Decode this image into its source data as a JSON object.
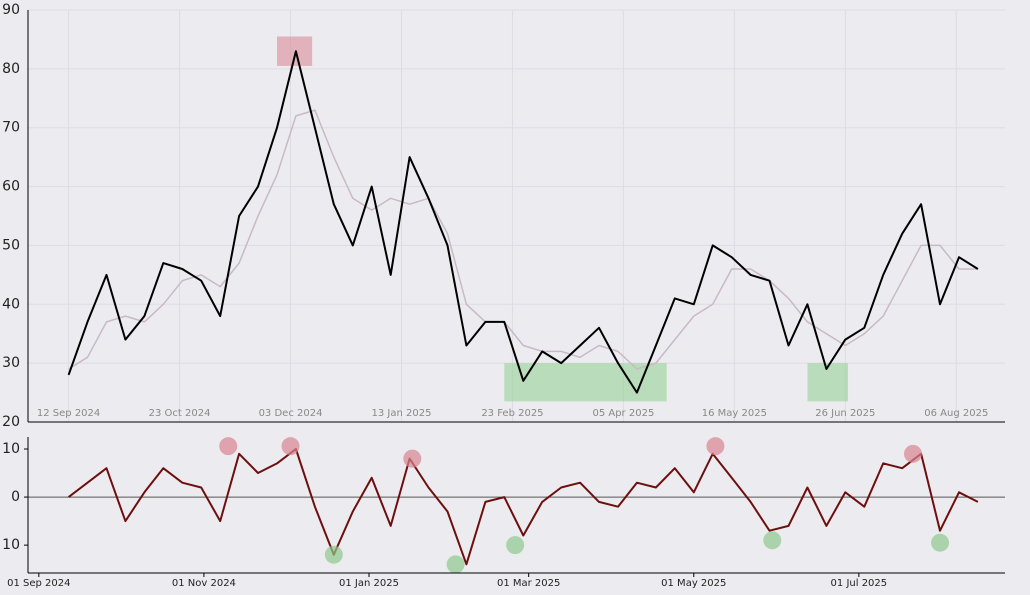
{
  "chart_data": [
    {
      "type": "line",
      "x": [
        "2024-09-12",
        "2024-09-19",
        "2024-09-26",
        "2024-10-03",
        "2024-10-10",
        "2024-10-17",
        "2024-10-24",
        "2024-10-31",
        "2024-11-07",
        "2024-11-14",
        "2024-11-21",
        "2024-11-28",
        "2024-12-05",
        "2024-12-12",
        "2024-12-19",
        "2024-12-26",
        "2025-01-02",
        "2025-01-09",
        "2025-01-16",
        "2025-01-23",
        "2025-01-30",
        "2025-02-06",
        "2025-02-13",
        "2025-02-20",
        "2025-02-27",
        "2025-03-06",
        "2025-03-13",
        "2025-03-20",
        "2025-03-27",
        "2025-04-03",
        "2025-04-10",
        "2025-04-17",
        "2025-04-24",
        "2025-05-01",
        "2025-05-08",
        "2025-05-15",
        "2025-05-22",
        "2025-05-29",
        "2025-06-05",
        "2025-06-12",
        "2025-06-19",
        "2025-06-26",
        "2025-07-03",
        "2025-07-10",
        "2025-07-17",
        "2025-07-24",
        "2025-07-31",
        "2025-08-07",
        "2025-08-14"
      ],
      "series": [
        {
          "color": "#000000",
          "values": [
            28,
            37,
            45,
            34,
            38,
            47,
            46,
            44,
            38,
            55,
            60,
            70,
            83,
            70,
            57,
            50,
            60,
            45,
            65,
            58,
            50,
            33,
            37,
            37,
            27,
            32,
            30,
            33,
            36,
            30,
            25,
            33,
            41,
            40,
            50,
            48,
            45,
            44,
            33,
            40,
            29,
            34,
            36,
            45,
            52,
            57,
            40,
            48,
            46
          ]
        },
        {
          "color": "#c9b9c6",
          "values": [
            29,
            31,
            37,
            38,
            37,
            40,
            44,
            45,
            43,
            47,
            55,
            62,
            72,
            73,
            65,
            58,
            56,
            58,
            57,
            58,
            52,
            40,
            37,
            37,
            33,
            32,
            32,
            31,
            33,
            32,
            29,
            30,
            34,
            38,
            40,
            46,
            46,
            44,
            41,
            37,
            35,
            33,
            35,
            38,
            44,
            50,
            50,
            46,
            46
          ]
        }
      ],
      "highlights": [
        {
          "color": "#d9848f",
          "x": [
            "2024-11-28",
            "2024-12-11"
          ],
          "y": [
            80.5,
            85.5
          ]
        },
        {
          "color": "#8fd18f",
          "x": [
            "2025-02-20",
            "2025-04-21"
          ],
          "y": [
            23.5,
            30
          ]
        },
        {
          "color": "#8fd18f",
          "x": [
            "2025-06-12",
            "2025-06-27"
          ],
          "y": [
            23.5,
            30
          ]
        }
      ],
      "xlim": [
        "2024-08-28",
        "2025-08-24"
      ],
      "xticks": [
        {
          "value": "2024-09-12",
          "label": "12 Sep 2024"
        },
        {
          "value": "2024-10-23",
          "label": "23 Oct 2024"
        },
        {
          "value": "2024-12-03",
          "label": "03 Dec 2024"
        },
        {
          "value": "2025-01-13",
          "label": "13 Jan 2025"
        },
        {
          "value": "2025-02-23",
          "label": "23 Feb 2025"
        },
        {
          "value": "2025-04-05",
          "label": "05 Apr 2025"
        },
        {
          "value": "2025-05-16",
          "label": "16 May 2025"
        },
        {
          "value": "2025-06-26",
          "label": "26 Jun 2025"
        },
        {
          "value": "2025-08-06",
          "label": "06 Aug 2025"
        }
      ],
      "ylim": [
        20,
        90
      ],
      "yticks": [
        20,
        30,
        40,
        50,
        60,
        70,
        80,
        90
      ],
      "grid": true
    },
    {
      "type": "line",
      "x": [
        "2024-09-12",
        "2024-09-19",
        "2024-09-26",
        "2024-10-03",
        "2024-10-10",
        "2024-10-17",
        "2024-10-24",
        "2024-10-31",
        "2024-11-07",
        "2024-11-14",
        "2024-11-21",
        "2024-11-28",
        "2024-12-05",
        "2024-12-12",
        "2024-12-19",
        "2024-12-26",
        "2025-01-02",
        "2025-01-09",
        "2025-01-16",
        "2025-01-23",
        "2025-01-30",
        "2025-02-06",
        "2025-02-13",
        "2025-02-20",
        "2025-02-27",
        "2025-03-06",
        "2025-03-13",
        "2025-03-20",
        "2025-03-27",
        "2025-04-03",
        "2025-04-10",
        "2025-04-17",
        "2025-04-24",
        "2025-05-01",
        "2025-05-08",
        "2025-05-15",
        "2025-05-22",
        "2025-05-29",
        "2025-06-05",
        "2025-06-12",
        "2025-06-19",
        "2025-06-26",
        "2025-07-03",
        "2025-07-10",
        "2025-07-17",
        "2025-07-24",
        "2025-07-31",
        "2025-08-07",
        "2025-08-14"
      ],
      "series": [
        {
          "color": "#6e0f0f",
          "values": [
            0,
            3,
            6,
            -5,
            1,
            6,
            3,
            2,
            -5,
            9,
            5,
            7,
            10,
            -2,
            -12,
            -3,
            4,
            -6,
            8,
            2,
            -3,
            -14,
            -1,
            0,
            -8,
            -1,
            2,
            3,
            -1,
            -2,
            3,
            2,
            6,
            1,
            9,
            4,
            -1,
            -7,
            -6,
            2,
            -6,
            1,
            -2,
            7,
            6,
            9,
            -7,
            1,
            -1
          ]
        }
      ],
      "markers": [
        {
          "color": "#d9848f",
          "x": [
            "2024-11-10",
            "2024-12-03",
            "2025-01-17",
            "2025-05-09",
            "2025-07-21"
          ],
          "values": [
            10.6,
            10.6,
            8,
            10.6,
            9
          ]
        },
        {
          "color": "#8fc98f",
          "x": [
            "2024-12-19",
            "2025-02-02",
            "2025-02-24",
            "2025-05-30",
            "2025-07-31"
          ],
          "values": [
            -12,
            -14,
            -10,
            -9,
            -9.5
          ]
        }
      ],
      "reference_line": 0,
      "xlim": [
        "2024-08-28",
        "2025-08-24"
      ],
      "xticks": [
        {
          "value": "2024-09-01",
          "label": "01 Sep 2024"
        },
        {
          "value": "2024-11-01",
          "label": "01 Nov 2024"
        },
        {
          "value": "2025-01-01",
          "label": "01 Jan 2025"
        },
        {
          "value": "2025-03-01",
          "label": "01 Mar 2025"
        },
        {
          "value": "2025-05-01",
          "label": "01 May 2025"
        },
        {
          "value": "2025-07-01",
          "label": "01 Jul 2025"
        }
      ],
      "ylim": [
        -15.8,
        12.5
      ],
      "yticks": [
        {
          "value": -10,
          "label": "10"
        },
        0,
        10
      ],
      "grid": false
    }
  ]
}
